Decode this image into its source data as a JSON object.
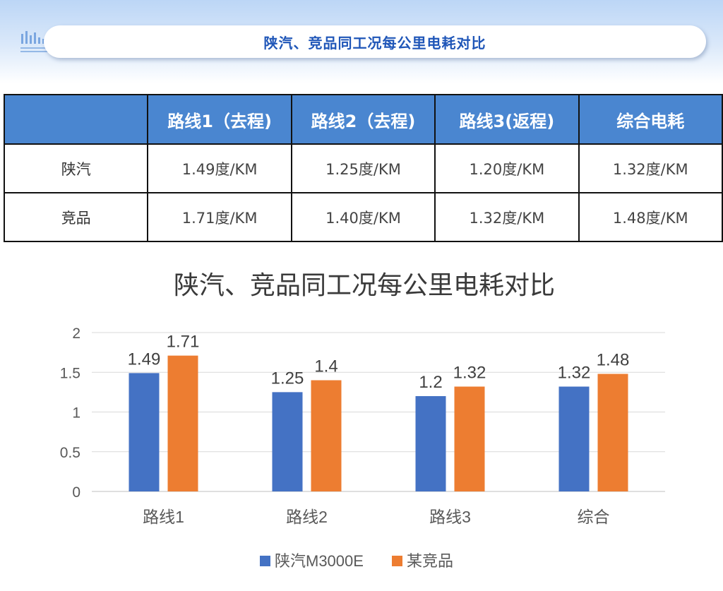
{
  "header": {
    "title": "陕汽、竞品同工况每公里电耗对比"
  },
  "table": {
    "headers": [
      "",
      "路线1（去程)",
      "路线2（去程)",
      "路线3(返程)",
      "综合电耗"
    ],
    "rows": [
      {
        "label": "陕汽",
        "values": [
          "1.49度/KM",
          "1.25度/KM",
          "1.20度/KM",
          "1.32度/KM"
        ]
      },
      {
        "label": "竞品",
        "values": [
          "1.71度/KM",
          "1.40度/KM",
          "1.32度/KM",
          "1.48度/KM"
        ]
      }
    ]
  },
  "colors": {
    "series1": "#4472c4",
    "series2": "#ed7d31",
    "header_fill": "#4a86d0",
    "header_text": "#1f56b8"
  },
  "chart_data": {
    "type": "bar",
    "title": "陕汽、竞品同工况每公里电耗对比",
    "categories": [
      "路线1",
      "路线2",
      "路线3",
      "综合"
    ],
    "series": [
      {
        "name": "陕汽M3000E",
        "values": [
          1.49,
          1.25,
          1.2,
          1.32
        ],
        "labels": [
          "1.49",
          "1.25",
          "1.2",
          "1.32"
        ]
      },
      {
        "name": "某竞品",
        "values": [
          1.71,
          1.4,
          1.32,
          1.48
        ],
        "labels": [
          "1.71",
          "1.4",
          "1.32",
          "1.48"
        ]
      }
    ],
    "ylim": [
      0,
      2
    ],
    "yticks": [
      0,
      0.5,
      1,
      1.5,
      2
    ],
    "ytick_labels": [
      "0",
      "0.5",
      "1",
      "1.5",
      "2"
    ],
    "grid": true,
    "legend": "bottom"
  }
}
